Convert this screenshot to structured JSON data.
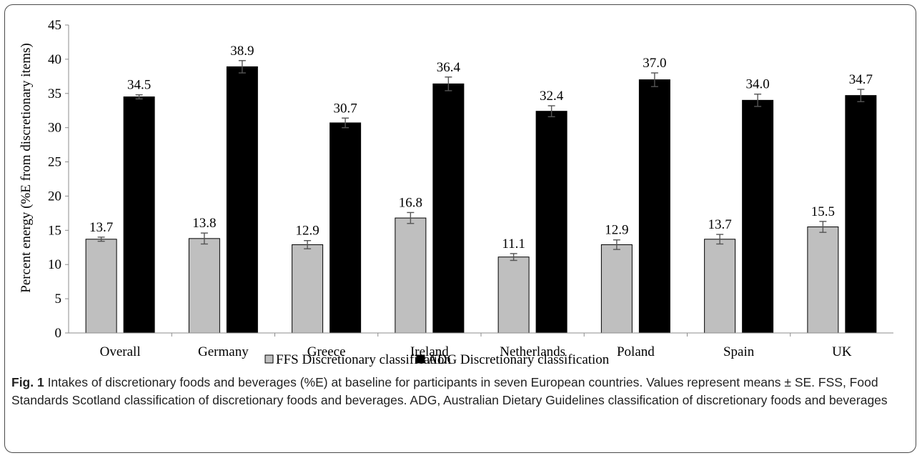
{
  "chart_data": {
    "type": "bar",
    "categories": [
      "Overall",
      "Germany",
      "Greece",
      "Ireland",
      "Netherlands",
      "Poland",
      "Spain",
      "UK"
    ],
    "series": [
      {
        "name": "FFS Discretionary classification",
        "color": "#bfbfbf",
        "values": [
          13.7,
          13.8,
          12.9,
          16.8,
          11.1,
          12.9,
          13.7,
          15.5
        ],
        "labels": [
          "13.7",
          "13.8",
          "12.9",
          "16.8",
          "11.1",
          "12.9",
          "13.7",
          "15.5"
        ],
        "errors": [
          0.3,
          0.8,
          0.6,
          0.8,
          0.5,
          0.7,
          0.7,
          0.8
        ]
      },
      {
        "name": "ADG Discretionary classification",
        "color": "#000000",
        "values": [
          34.5,
          38.9,
          30.7,
          36.4,
          32.4,
          37.0,
          34.0,
          34.7
        ],
        "labels": [
          "34.5",
          "38.9",
          "30.7",
          "36.4",
          "32.4",
          "37.0",
          "34.0",
          "34.7"
        ],
        "errors": [
          0.3,
          0.9,
          0.7,
          1.0,
          0.8,
          1.0,
          0.9,
          0.9
        ]
      }
    ],
    "ylabel": "Percent energy (%E from discretionary items)",
    "xlabel": "",
    "ylim": [
      0,
      45
    ],
    "yticks": [
      "0",
      "5",
      "10",
      "15",
      "20",
      "25",
      "30",
      "35",
      "40",
      "45"
    ],
    "grid": false,
    "legend": "bottom"
  },
  "caption": {
    "fig_label": "Fig. 1",
    "text": " Intakes of discretionary foods and beverages (%E) at baseline for participants in seven European countries. Values represent means ± SE. FSS, Food Standards Scotland classification of discretionary foods and beverages. ADG, Australian Dietary Guidelines classification of discretionary foods and beverages"
  }
}
